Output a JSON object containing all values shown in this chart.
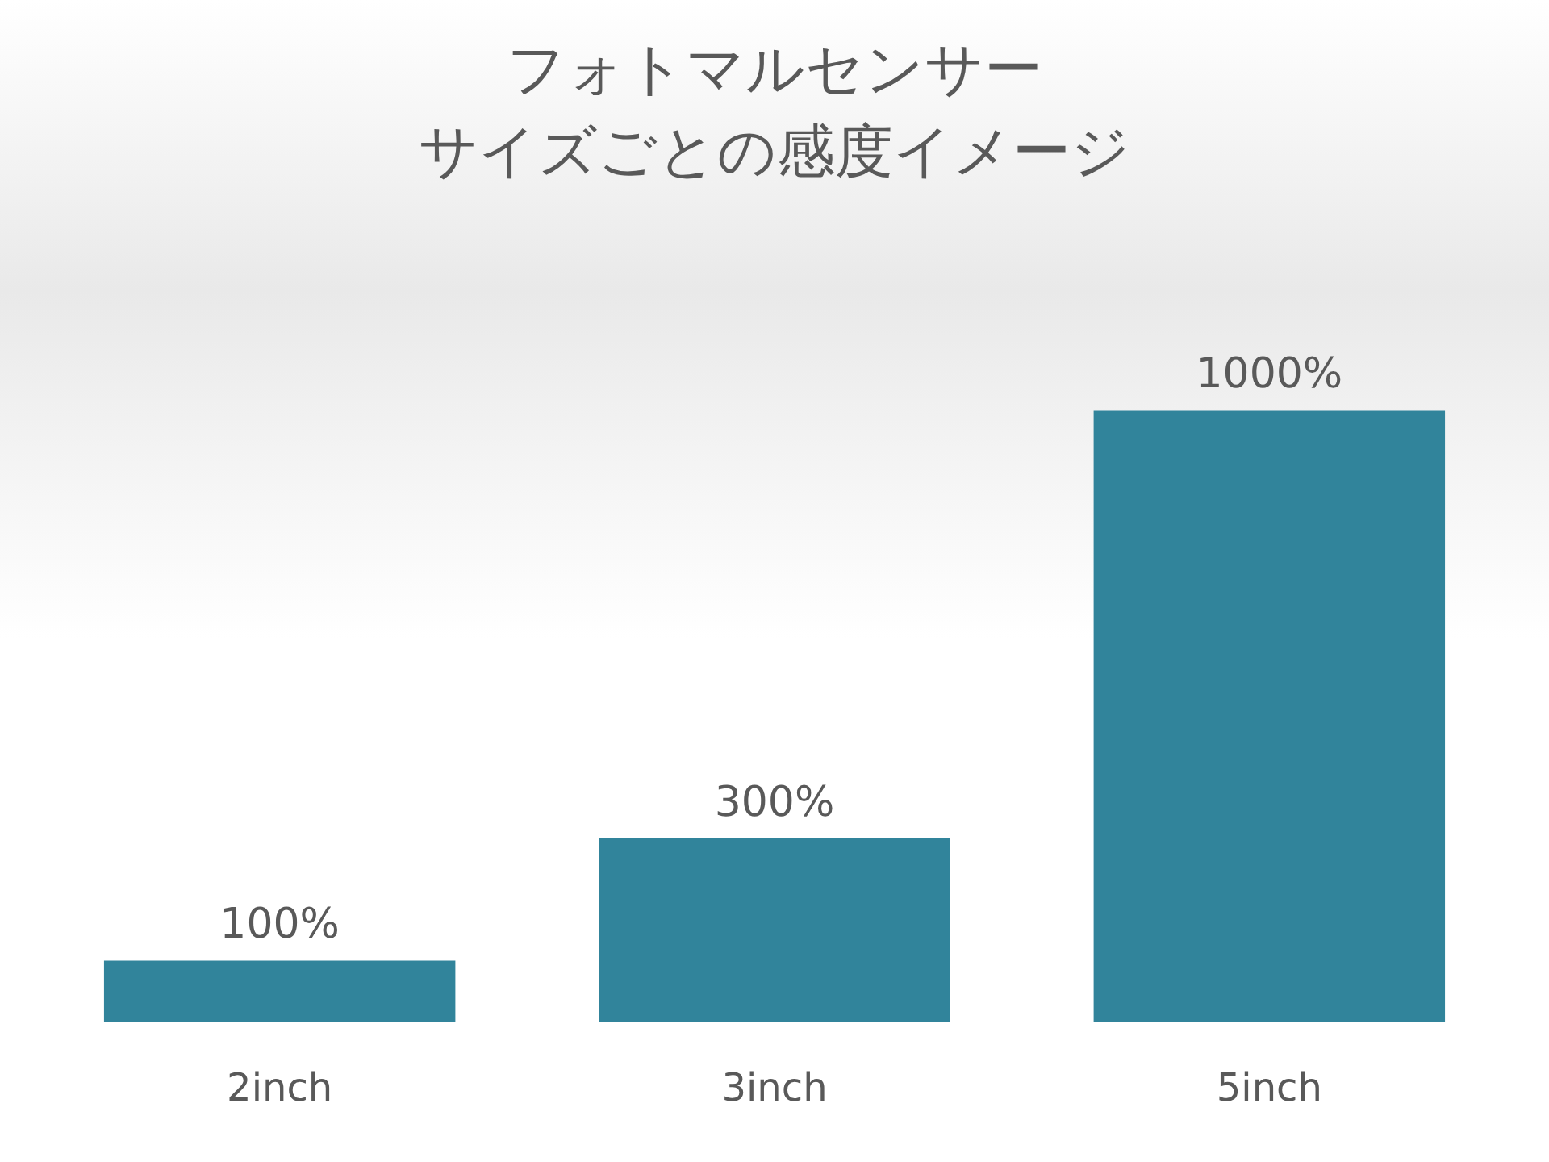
{
  "chart_data": {
    "type": "bar",
    "title": "フォトマルセンサー",
    "subtitle": "サイズごとの感度イメージ",
    "categories": [
      "2inch",
      "3inch",
      "5inch"
    ],
    "values": [
      100,
      300,
      1000
    ],
    "value_labels": [
      "100%",
      "300%",
      "1000%"
    ],
    "color": "#31849b"
  }
}
